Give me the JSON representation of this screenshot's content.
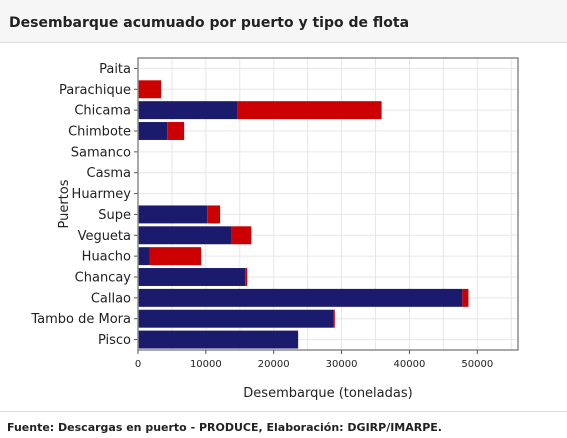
{
  "header": {
    "title": "Desembarque acumuado por puerto y tipo de flota"
  },
  "footer": {
    "source": "Fuente: Descargas en puerto - PRODUCE, Elaboración: DGIRP/IMARPE."
  },
  "colors": {
    "series_a": "#1b1b6e",
    "series_b": "#cc0000",
    "grid": "#e6e6e6",
    "frame": "#8c8c8c"
  },
  "chart_data": {
    "type": "bar",
    "orientation": "horizontal",
    "stacked": true,
    "title": "",
    "xlabel": "Desembarque (toneladas)",
    "ylabel": "Puertos",
    "xlim": [
      0,
      56000
    ],
    "xticks": [
      0,
      10000,
      20000,
      30000,
      40000,
      50000
    ],
    "xtick_labels": [
      "0",
      "10000",
      "20000",
      "30000",
      "40000",
      "50000"
    ],
    "grid": true,
    "legend": "none",
    "categories": [
      "Paita",
      "Parachique",
      "Chicama",
      "Chimbote",
      "Samanco",
      "Casma",
      "Huarmey",
      "Supe",
      "Vegueta",
      "Huacho",
      "Chancay",
      "Callao",
      "Tambo de Mora",
      "Pisco"
    ],
    "series": [
      {
        "values": [
          0,
          0,
          14700,
          4300,
          0,
          0,
          0,
          10200,
          13800,
          1700,
          15800,
          47800,
          28800,
          23600
        ]
      },
      {
        "values": [
          0,
          3400,
          21200,
          2500,
          0,
          0,
          0,
          1900,
          2900,
          7600,
          300,
          900,
          200,
          0
        ]
      }
    ]
  }
}
